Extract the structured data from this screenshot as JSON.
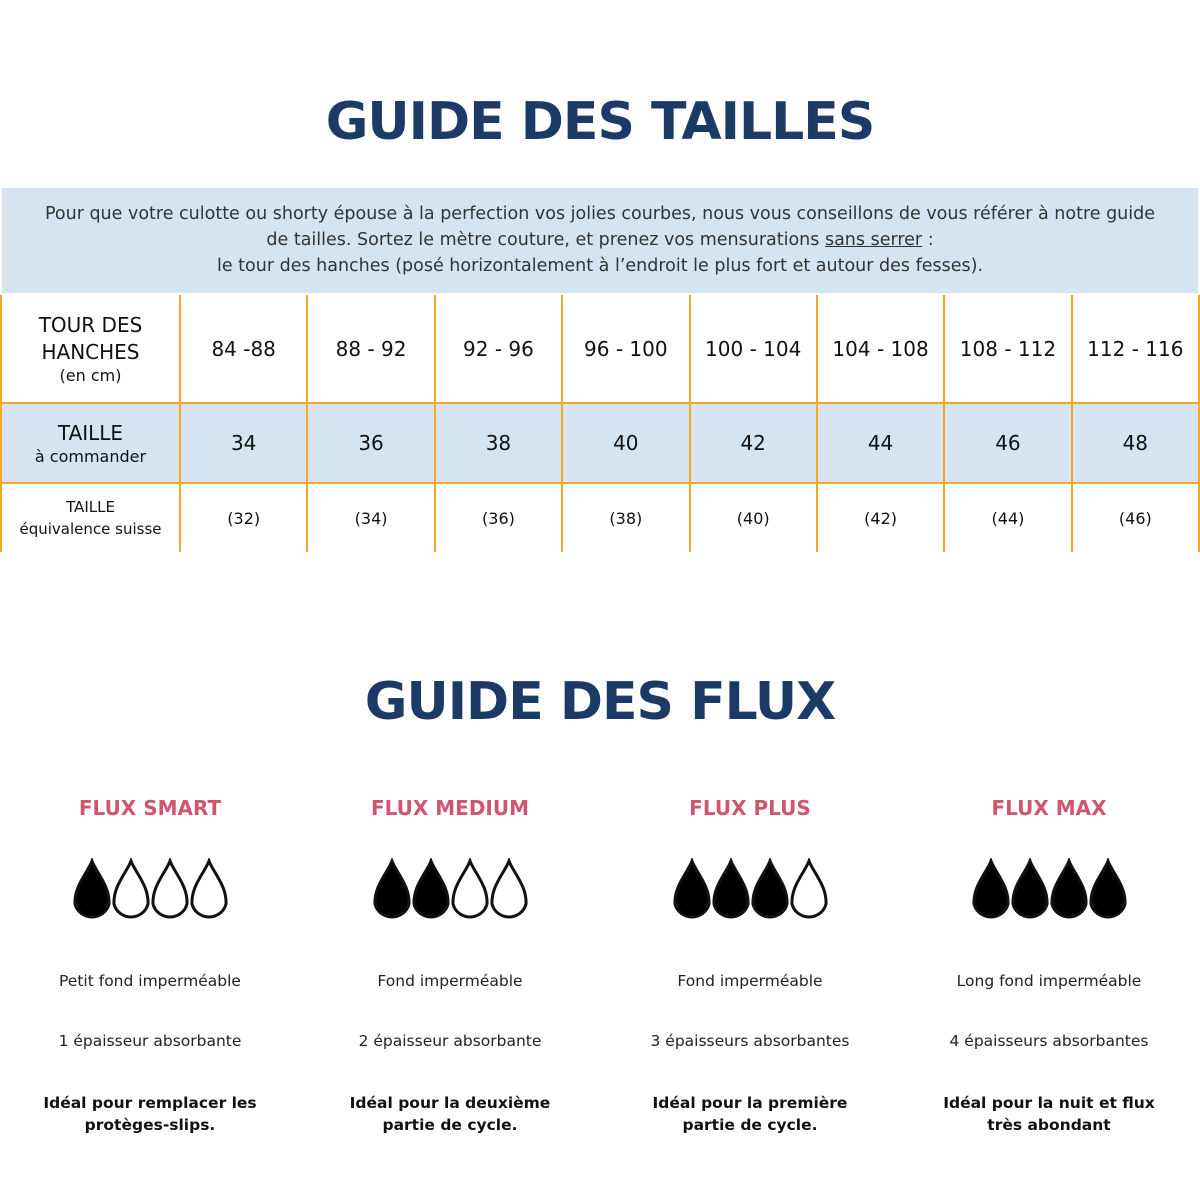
{
  "size_guide": {
    "title": "GUIDE DES TAILLES",
    "intro_line1": "Pour que votre culotte ou shorty épouse à la perfection vos jolies courbes, nous vous conseillons de vous référer à notre guide",
    "intro_line2_a": "de tailles. Sortez le mètre couture, et prenez vos mensurations ",
    "intro_line2_u": "sans serrer",
    "intro_line2_b": " :",
    "intro_line3": "le tour des hanches (posé horizontalement à l’endroit le plus fort et autour des fesses).",
    "row1": {
      "label": "TOUR DES HANCHES",
      "sublabel": "(en cm)",
      "values": [
        "84 -88",
        "88 - 92",
        "92 - 96",
        "96 - 100",
        "100 - 104",
        "104 - 108",
        "108 - 112",
        "112 - 116"
      ]
    },
    "row2": {
      "label": "TAILLE",
      "sublabel": "à commander",
      "values": [
        "34",
        "36",
        "38",
        "40",
        "42",
        "44",
        "46",
        "48"
      ]
    },
    "row3": {
      "label": "TAILLE",
      "sublabel": "équivalence suisse",
      "values": [
        "(32)",
        "(34)",
        "(36)",
        "(38)",
        "(40)",
        "(42)",
        "(44)",
        "(46)"
      ]
    }
  },
  "flux_guide": {
    "title": "GUIDE DES FLUX",
    "items": [
      {
        "name": "FLUX SMART",
        "filled_drops": 1,
        "total_drops": 4,
        "line1": "Petit fond imperméable",
        "line2": "1 épaisseur absorbante",
        "line3": "Idéal pour remplacer les protèges-slips."
      },
      {
        "name": "FLUX MEDIUM",
        "filled_drops": 2,
        "total_drops": 4,
        "line1": "Fond imperméable",
        "line2": "2 épaisseur absorbante",
        "line3": "Idéal pour la deuxième partie de cycle."
      },
      {
        "name": "FLUX PLUS",
        "filled_drops": 3,
        "total_drops": 4,
        "line1": "Fond imperméable",
        "line2": "3 épaisseurs absorbantes",
        "line3": "Idéal pour la première partie de cycle."
      },
      {
        "name": "FLUX MAX",
        "filled_drops": 4,
        "total_drops": 4,
        "line1": "Long fond imperméable",
        "line2": "4 épaisseurs absorbantes",
        "line3": "Idéal pour la nuit et flux très abondant"
      }
    ]
  },
  "colors": {
    "title": "#1b3a66",
    "flux_name": "#d0566e",
    "border": "#f5a623",
    "highlight": "#d6e4f2"
  }
}
